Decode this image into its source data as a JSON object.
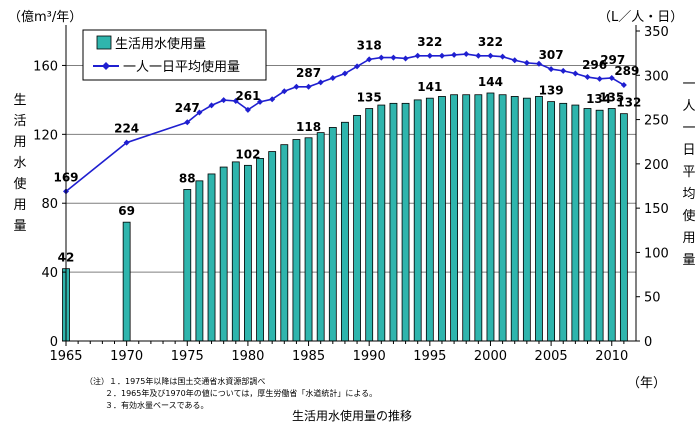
{
  "chart_data": {
    "type": "bar+line",
    "title": "生活用水使用量の推移",
    "x": [
      1965,
      1970,
      1975,
      1976,
      1977,
      1978,
      1979,
      1980,
      1981,
      1982,
      1983,
      1984,
      1985,
      1986,
      1987,
      1988,
      1989,
      1990,
      1991,
      1992,
      1993,
      1994,
      1995,
      1996,
      1997,
      1998,
      1999,
      2000,
      2001,
      2002,
      2003,
      2004,
      2005,
      2006,
      2007,
      2008,
      2009,
      2010,
      2011
    ],
    "xticks": [
      "1965",
      "1970",
      "1975",
      "1980",
      "1985",
      "1990",
      "1995",
      "2000",
      "2005",
      "2010"
    ],
    "xunit": "（年）",
    "series": [
      {
        "name": "生活用水使用量",
        "kind": "bar",
        "axis": "left",
        "color": "#2fb5ad",
        "values": [
          42,
          69,
          88,
          93,
          97,
          101,
          104,
          102,
          106,
          110,
          114,
          117,
          118,
          121,
          124,
          127,
          131,
          135,
          137,
          138,
          138,
          140,
          141,
          142,
          143,
          143,
          143,
          144,
          143,
          142,
          141,
          142,
          139,
          138,
          137,
          135,
          134,
          135,
          132
        ]
      },
      {
        "name": "一人一日平均使用量",
        "kind": "line",
        "axis": "right",
        "color": "#1f1fd0",
        "values": [
          169,
          224,
          247,
          258,
          266,
          272,
          271,
          261,
          270,
          273,
          282,
          287,
          287,
          292,
          297,
          302,
          310,
          318,
          320,
          320,
          319,
          322,
          322,
          322,
          323,
          324,
          322,
          322,
          321,
          317,
          314,
          313,
          307,
          305,
          302,
          298,
          296,
          297,
          289
        ]
      }
    ],
    "bar_labels": [
      {
        "year": 1965,
        "text": "42"
      },
      {
        "year": 1970,
        "text": "69"
      },
      {
        "year": 1975,
        "text": "88"
      },
      {
        "year": 1980,
        "text": "102"
      },
      {
        "year": 1985,
        "text": "118"
      },
      {
        "year": 1990,
        "text": "135"
      },
      {
        "year": 1995,
        "text": "141"
      },
      {
        "year": 2000,
        "text": "144"
      },
      {
        "year": 2005,
        "text": "139"
      },
      {
        "year": 2009,
        "text": "134"
      },
      {
        "year": 2010,
        "text": "135"
      },
      {
        "year": 2011,
        "text": "132"
      }
    ],
    "line_labels": [
      {
        "year": 1965,
        "text": "169"
      },
      {
        "year": 1970,
        "text": "224"
      },
      {
        "year": 1975,
        "text": "247"
      },
      {
        "year": 1980,
        "text": "261"
      },
      {
        "year": 1985,
        "text": "287"
      },
      {
        "year": 1990,
        "text": "318"
      },
      {
        "year": 1995,
        "text": "322"
      },
      {
        "year": 2000,
        "text": "322"
      },
      {
        "year": 2005,
        "text": "307"
      },
      {
        "year": 2009,
        "text": "296"
      },
      {
        "year": 2010,
        "text": "297"
      },
      {
        "year": 2011,
        "text": "289"
      }
    ],
    "yleft": {
      "label": "生活用水使用量",
      "unit": "（億m³/年）",
      "range": [
        0,
        180
      ],
      "ticks": [
        "0",
        "40",
        "80",
        "120",
        "160"
      ]
    },
    "yright": {
      "label": "一人一日平均使用量",
      "unit": "（L／人・日）",
      "range": [
        0,
        350
      ],
      "ticks": [
        "0",
        "50",
        "100",
        "150",
        "200",
        "250",
        "300",
        "350"
      ]
    },
    "legend": [
      "生活用水使用量",
      "一人一日平均使用量"
    ],
    "notes": [
      "（注）１．1975年以降は国土交通省水資源部調べ",
      "２．1965年及び1970年の値については，厚生労働省「水道統計」による。",
      "３．有効水量ベースである。"
    ]
  }
}
